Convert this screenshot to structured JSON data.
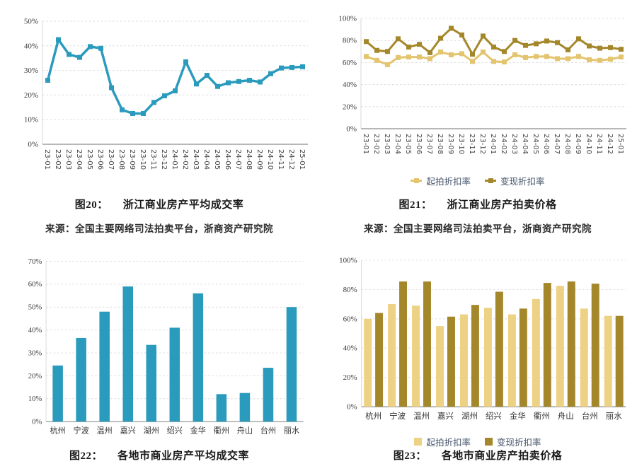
{
  "source_note": "来源：全国主要网络司法拍卖平台，浙商资产研究院",
  "colors": {
    "teal": "#2B9BBD",
    "line_light_gold": "#E3C46F",
    "line_dark_gold": "#A5872B",
    "bar_light_gold": "#EDD184",
    "bar_dark_gold": "#A5872B",
    "gridline": "#DCDCDC",
    "axis": "#8C8C8C",
    "legend_text": "#44546A"
  },
  "chart_data": [
    {
      "id": "fig20",
      "type": "line",
      "fig_label": "图20：",
      "title": "浙江商业房产平均成交率",
      "categories": [
        "23-01",
        "23-02",
        "23-03",
        "23-04",
        "23-05",
        "23-06",
        "23-07",
        "23-08",
        "23-09",
        "23-10",
        "23-11",
        "23-12",
        "24-01",
        "24-02",
        "24-03",
        "24-04",
        "24-05",
        "24-06",
        "24-07",
        "24-08",
        "24-09",
        "24-10",
        "24-11",
        "24-12",
        "25-01"
      ],
      "series": [
        {
          "color": "#2B9BBD",
          "values": [
            26,
            42.5,
            36.5,
            35.3,
            39.7,
            39,
            23,
            14,
            12.5,
            12.5,
            17,
            19.7,
            21.7,
            33.5,
            24.5,
            28,
            23.5,
            25,
            25.5,
            26,
            25.3,
            28.7,
            31,
            31.2,
            31.5
          ]
        }
      ],
      "ylim": [
        0,
        50
      ],
      "ytick_step": 10,
      "grid": true,
      "x_label_rotation": 90,
      "legend_position": "none"
    },
    {
      "id": "fig21",
      "type": "line",
      "fig_label": "图21：",
      "title": "浙江商业房产拍卖价格",
      "categories": [
        "23-01",
        "23-02",
        "23-03",
        "23-04",
        "23-05",
        "23-06",
        "23-07",
        "23-08",
        "23-09",
        "23-10",
        "23-11",
        "23-12",
        "24-01",
        "24-02",
        "24-03",
        "24-04",
        "24-05",
        "24-06",
        "24-07",
        "24-08",
        "24-09",
        "24-10",
        "24-11",
        "24-12",
        "25-01"
      ],
      "series": [
        {
          "name": "起拍折扣率",
          "color": "#E3C46F",
          "values": [
            65.5,
            62,
            58,
            64.5,
            65,
            65,
            63.5,
            69.5,
            67,
            68,
            61,
            69.5,
            61,
            60.5,
            67,
            64.5,
            65.5,
            65.5,
            63.5,
            63.5,
            65.5,
            62.5,
            62,
            63,
            65
          ]
        },
        {
          "name": "变现折扣率",
          "color": "#A5872B",
          "values": [
            79,
            71,
            70,
            81.5,
            74,
            76.5,
            69,
            82,
            91,
            85,
            67.5,
            84,
            74,
            70,
            80,
            75.5,
            77,
            79.5,
            78,
            71.5,
            81.5,
            75,
            73,
            73.5,
            72
          ]
        }
      ],
      "ylim": [
        0,
        100
      ],
      "ytick_step": 20,
      "grid": true,
      "x_label_rotation": 90,
      "legend_position": "bottom"
    },
    {
      "id": "fig22",
      "type": "bar",
      "fig_label": "图22：",
      "title": "各地市商业房产平均成交率",
      "categories": [
        "杭州",
        "宁波",
        "温州",
        "嘉兴",
        "湖州",
        "绍兴",
        "金华",
        "衢州",
        "舟山",
        "台州",
        "丽水"
      ],
      "series": [
        {
          "color": "#2B9BBD",
          "values": [
            24.5,
            36.5,
            48,
            59,
            33.5,
            41,
            56,
            12,
            12.5,
            23.5,
            50
          ]
        }
      ],
      "ylim": [
        0,
        70
      ],
      "ytick_step": 10,
      "grid": true,
      "legend_position": "none"
    },
    {
      "id": "fig23",
      "type": "bar",
      "fig_label": "图23：",
      "title": "各地市商业房产拍卖价格",
      "categories": [
        "杭州",
        "宁波",
        "温州",
        "嘉兴",
        "湖州",
        "绍兴",
        "金华",
        "衢州",
        "舟山",
        "台州",
        "丽水"
      ],
      "series": [
        {
          "name": "起拍折扣率",
          "color": "#EDD184",
          "values": [
            60,
            70,
            69,
            55,
            63,
            67.5,
            63,
            73.5,
            82.5,
            67,
            62
          ]
        },
        {
          "name": "变现折扣率",
          "color": "#A5872B",
          "values": [
            64,
            85.5,
            85.5,
            61.5,
            69.5,
            78.5,
            67,
            84.5,
            85.5,
            84,
            62
          ]
        }
      ],
      "ylim": [
        0,
        100
      ],
      "ytick_step": 20,
      "grid": true,
      "legend_position": "bottom"
    }
  ]
}
